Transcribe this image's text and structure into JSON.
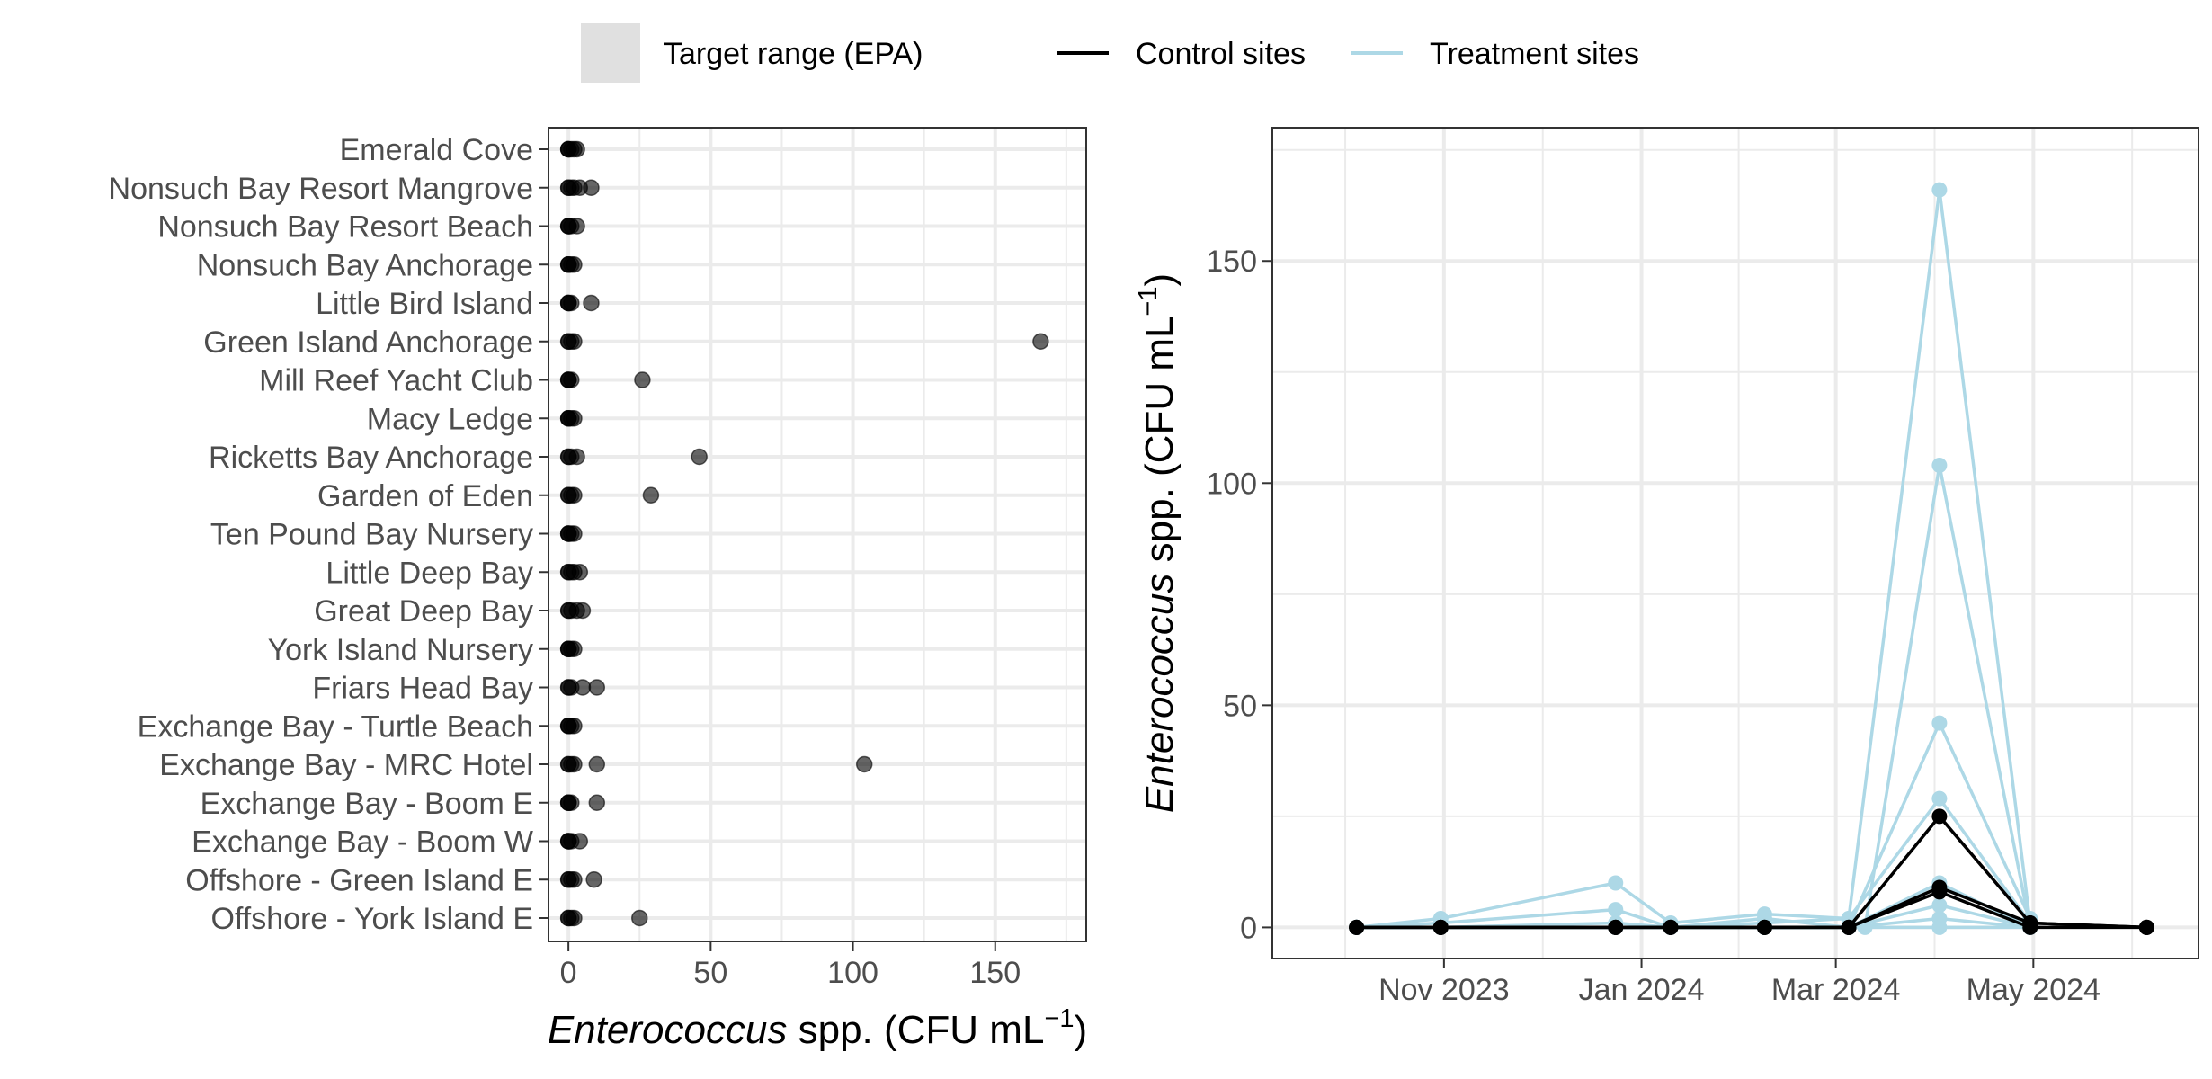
{
  "legend": {
    "items": [
      {
        "label": "Target range (EPA)",
        "kind": "fill",
        "color": "#e0e0e0"
      },
      {
        "label": "Control sites",
        "kind": "line",
        "color": "#000000"
      },
      {
        "label": "Treatment sites",
        "kind": "line",
        "color": "#add8e6"
      }
    ]
  },
  "colors": {
    "control": "#000000",
    "treatment": "#add8e6",
    "point": "#000000",
    "grid": "#ebebeb"
  },
  "chart_data": [
    {
      "type": "scatter",
      "orientation": "horizontal",
      "xlabel": {
        "italic": "Enterococcus",
        "rest": " spp. (CFU mL",
        "sup": "−1",
        "close": ")"
      },
      "xlim": [
        -7,
        182
      ],
      "xticks": [
        0,
        50,
        100,
        150
      ],
      "grid": true,
      "sites": [
        {
          "name": "Emerald Cove",
          "values": [
            0,
            0,
            0,
            1,
            2,
            3
          ]
        },
        {
          "name": "Nonsuch Bay Resort Mangrove",
          "values": [
            0,
            0,
            1,
            2,
            4,
            8
          ]
        },
        {
          "name": "Nonsuch Bay Resort Beach",
          "values": [
            0,
            0,
            0,
            1,
            3
          ]
        },
        {
          "name": "Nonsuch Bay Anchorage",
          "values": [
            0,
            0,
            0,
            1,
            2
          ]
        },
        {
          "name": "Little Bird Island",
          "values": [
            0,
            0,
            0,
            1,
            8
          ]
        },
        {
          "name": "Green Island Anchorage",
          "values": [
            0,
            0,
            1,
            2,
            166
          ]
        },
        {
          "name": "Mill Reef Yacht Club",
          "values": [
            0,
            0,
            0,
            1,
            26
          ]
        },
        {
          "name": "Macy Ledge",
          "values": [
            0,
            0,
            0,
            1,
            2
          ]
        },
        {
          "name": "Ricketts Bay Anchorage",
          "values": [
            0,
            0,
            1,
            3,
            46
          ]
        },
        {
          "name": "Garden of Eden",
          "values": [
            0,
            0,
            1,
            2,
            29
          ]
        },
        {
          "name": "Ten Pound Bay Nursery",
          "values": [
            0,
            0,
            0,
            1,
            2
          ]
        },
        {
          "name": "Little Deep Bay",
          "values": [
            0,
            0,
            1,
            2,
            4
          ]
        },
        {
          "name": "Great Deep Bay",
          "values": [
            0,
            0,
            1,
            3,
            5
          ]
        },
        {
          "name": "York Island Nursery",
          "values": [
            0,
            0,
            0,
            1,
            2
          ]
        },
        {
          "name": "Friars Head Bay",
          "values": [
            0,
            0,
            1,
            5,
            10
          ]
        },
        {
          "name": "Exchange Bay - Turtle Beach",
          "values": [
            0,
            0,
            0,
            1,
            2
          ]
        },
        {
          "name": "Exchange Bay - MRC Hotel",
          "values": [
            0,
            0,
            1,
            2,
            10,
            104
          ]
        },
        {
          "name": "Exchange Bay - Boom E",
          "values": [
            0,
            0,
            0,
            1,
            10
          ]
        },
        {
          "name": "Exchange Bay - Boom W",
          "values": [
            0,
            0,
            0,
            1,
            4
          ]
        },
        {
          "name": "Offshore - Green Island E",
          "values": [
            0,
            0,
            1,
            2,
            9
          ]
        },
        {
          "name": "Offshore - York Island E",
          "values": [
            0,
            0,
            1,
            2,
            25
          ]
        }
      ]
    },
    {
      "type": "line",
      "ylabel": {
        "italic": "Enterococcus",
        "rest": " spp. (CFU mL",
        "sup": "−1",
        "close": ")"
      },
      "xlim": [
        "2023-09-09",
        "2024-06-21"
      ],
      "ylim": [
        -7,
        180
      ],
      "yticks": [
        0,
        50,
        100,
        150
      ],
      "xticks": [
        {
          "date": "2023-11-01",
          "label": "Nov 2023"
        },
        {
          "date": "2024-01-01",
          "label": "Jan 2024"
        },
        {
          "date": "2024-03-01",
          "label": "Mar 2024"
        },
        {
          "date": "2024-05-01",
          "label": "May 2024"
        }
      ],
      "grid": true,
      "treatment_series": [
        {
          "x": [
            "2023-10-05",
            "2023-10-31",
            "2023-12-24",
            "2024-01-10",
            "2024-02-08",
            "2024-03-05",
            "2024-04-02",
            "2024-04-30"
          ],
          "y": [
            0,
            2,
            10,
            1,
            3,
            2,
            29,
            1
          ]
        },
        {
          "x": [
            "2023-10-05",
            "2023-10-31",
            "2023-12-24",
            "2024-01-10",
            "2024-02-08",
            "2024-03-05",
            "2024-04-02",
            "2024-04-30"
          ],
          "y": [
            0,
            1,
            4,
            0,
            2,
            0,
            46,
            2
          ]
        },
        {
          "x": [
            "2023-10-05",
            "2023-10-31",
            "2023-12-24",
            "2024-01-10",
            "2024-02-08",
            "2024-03-10",
            "2024-04-02",
            "2024-04-30"
          ],
          "y": [
            0,
            0,
            0,
            0,
            0,
            0,
            104,
            0
          ]
        },
        {
          "x": [
            "2023-10-05",
            "2023-10-31",
            "2023-12-24",
            "2024-01-10",
            "2024-02-08",
            "2024-03-05",
            "2024-04-02",
            "2024-04-30"
          ],
          "y": [
            0,
            0,
            1,
            0,
            1,
            2,
            166,
            1
          ]
        },
        {
          "x": [
            "2023-10-05",
            "2023-10-31",
            "2023-12-24",
            "2024-01-10",
            "2024-02-08",
            "2024-03-05",
            "2024-04-02",
            "2024-04-30"
          ],
          "y": [
            0,
            0,
            0,
            0,
            0,
            0,
            10,
            0
          ]
        },
        {
          "x": [
            "2023-10-05",
            "2023-10-31",
            "2023-12-24",
            "2024-01-10",
            "2024-02-08",
            "2024-03-05",
            "2024-04-02",
            "2024-04-30"
          ],
          "y": [
            0,
            0,
            0,
            0,
            0,
            0,
            5,
            0
          ]
        },
        {
          "x": [
            "2023-10-05",
            "2023-10-31",
            "2023-12-24",
            "2024-01-10",
            "2024-02-08",
            "2024-03-05",
            "2024-04-02",
            "2024-04-30"
          ],
          "y": [
            0,
            0,
            0,
            0,
            0,
            0,
            2,
            0
          ]
        },
        {
          "x": [
            "2023-10-05",
            "2023-10-31",
            "2023-12-24",
            "2024-01-10",
            "2024-02-08",
            "2024-03-05",
            "2024-04-02",
            "2024-04-30"
          ],
          "y": [
            0,
            0,
            0,
            0,
            0,
            0,
            0,
            0
          ]
        }
      ],
      "control_series": [
        {
          "x": [
            "2023-10-05",
            "2023-10-31",
            "2023-12-24",
            "2024-01-10",
            "2024-02-08",
            "2024-03-05",
            "2024-04-02",
            "2024-04-30",
            "2024-06-05"
          ],
          "y": [
            0,
            0,
            0,
            0,
            0,
            0,
            25,
            1,
            0
          ]
        },
        {
          "x": [
            "2023-10-05",
            "2023-10-31",
            "2023-12-24",
            "2024-01-10",
            "2024-02-08",
            "2024-03-05",
            "2024-04-02",
            "2024-04-30",
            "2024-06-05"
          ],
          "y": [
            0,
            0,
            0,
            0,
            0,
            0,
            9,
            1,
            0
          ]
        },
        {
          "x": [
            "2023-10-05",
            "2023-10-31",
            "2023-12-24",
            "2024-01-10",
            "2024-02-08",
            "2024-03-05",
            "2024-04-02",
            "2024-04-30",
            "2024-06-05"
          ],
          "y": [
            0,
            0,
            0,
            0,
            0,
            0,
            8,
            0,
            0
          ]
        }
      ]
    }
  ]
}
